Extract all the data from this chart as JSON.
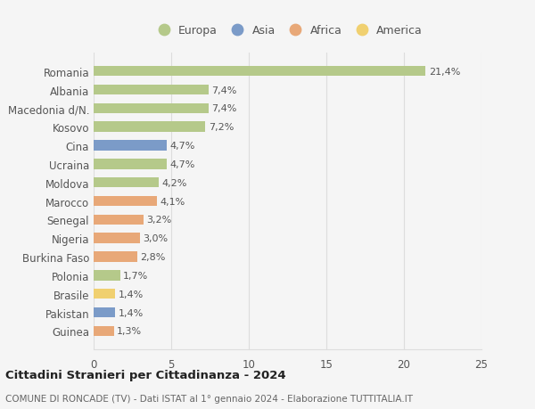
{
  "countries": [
    "Romania",
    "Albania",
    "Macedonia d/N.",
    "Kosovo",
    "Cina",
    "Ucraina",
    "Moldova",
    "Marocco",
    "Senegal",
    "Nigeria",
    "Burkina Faso",
    "Polonia",
    "Brasile",
    "Pakistan",
    "Guinea"
  ],
  "values": [
    21.4,
    7.4,
    7.4,
    7.2,
    4.7,
    4.7,
    4.2,
    4.1,
    3.2,
    3.0,
    2.8,
    1.7,
    1.4,
    1.4,
    1.3
  ],
  "labels": [
    "21,4%",
    "7,4%",
    "7,4%",
    "7,2%",
    "4,7%",
    "4,7%",
    "4,2%",
    "4,1%",
    "3,2%",
    "3,0%",
    "2,8%",
    "1,7%",
    "1,4%",
    "1,4%",
    "1,3%"
  ],
  "bar_colors": [
    "#b5c98a",
    "#b5c98a",
    "#b5c98a",
    "#b5c98a",
    "#7b9bc8",
    "#b5c98a",
    "#b5c98a",
    "#e8a878",
    "#e8a878",
    "#e8a878",
    "#e8a878",
    "#b5c98a",
    "#f0d070",
    "#7b9bc8",
    "#e8a878"
  ],
  "legend_labels": [
    "Europa",
    "Asia",
    "Africa",
    "America"
  ],
  "legend_colors": [
    "#b5c98a",
    "#7b9bc8",
    "#e8a878",
    "#f0d070"
  ],
  "title": "Cittadini Stranieri per Cittadinanza - 2024",
  "subtitle": "COMUNE DI RONCADE (TV) - Dati ISTAT al 1° gennaio 2024 - Elaborazione TUTTITALIA.IT",
  "xlim": [
    0,
    25
  ],
  "xticks": [
    0,
    5,
    10,
    15,
    20,
    25
  ],
  "background_color": "#f5f5f5",
  "grid_color": "#dddddd",
  "label_fontsize": 8.0,
  "tick_fontsize": 8.5
}
